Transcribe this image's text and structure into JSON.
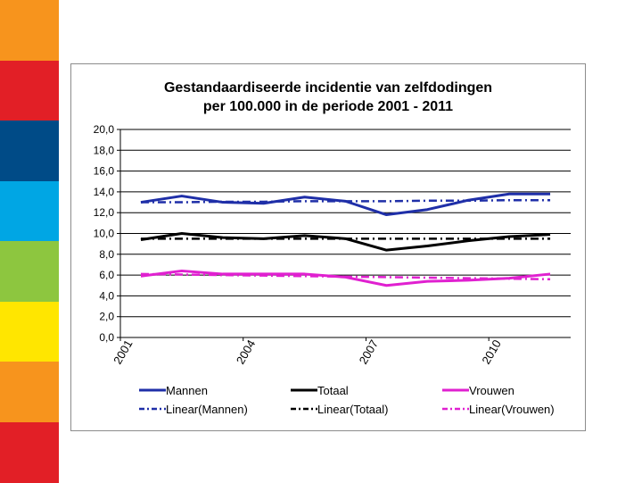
{
  "slide": {
    "stripe_colors": [
      "#f7941d",
      "#e21f26",
      "#004b87",
      "#00a6e4",
      "#8dc63f",
      "#ffe600",
      "#f7941d",
      "#e21f26"
    ]
  },
  "chart_data": {
    "type": "line",
    "title_line1": "Gestandaardiseerde incidentie van zelfdodingen",
    "title_line2": "per 100.000 in de periode 2001 - 2011",
    "xlabel": "",
    "ylabel": "",
    "x": [
      2001,
      2002,
      2003,
      2004,
      2005,
      2006,
      2007,
      2008,
      2009,
      2010,
      2011
    ],
    "x_tick_labels": [
      "2001",
      "2004",
      "2007",
      "2010"
    ],
    "x_tick_values": [
      2001,
      2004,
      2007,
      2010
    ],
    "ylim": [
      0,
      20
    ],
    "y_ticks": [
      0,
      2,
      4,
      6,
      8,
      10,
      12,
      14,
      16,
      18,
      20
    ],
    "y_tick_labels": [
      "0,0",
      "2,0",
      "4,0",
      "6,0",
      "8,0",
      "10,0",
      "12,0",
      "14,0",
      "16,0",
      "18,0",
      "20,0"
    ],
    "grid": true,
    "legend_position": "bottom",
    "series": [
      {
        "name": "Mannen",
        "style": "solid",
        "color": "#1f2fa8",
        "values": [
          13.0,
          13.6,
          13.0,
          12.9,
          13.5,
          13.1,
          11.8,
          12.3,
          13.2,
          13.8,
          13.8
        ]
      },
      {
        "name": "Totaal",
        "style": "solid",
        "color": "#000000",
        "values": [
          9.4,
          10.0,
          9.6,
          9.5,
          9.8,
          9.5,
          8.4,
          8.8,
          9.3,
          9.7,
          9.9
        ]
      },
      {
        "name": "Vrouwen",
        "style": "solid",
        "color": "#e020d0",
        "values": [
          5.9,
          6.4,
          6.1,
          6.1,
          6.1,
          5.8,
          5.0,
          5.4,
          5.5,
          5.7,
          6.1
        ]
      },
      {
        "name": "Linear(Mannen)",
        "style": "dashdot",
        "color": "#1f2fa8",
        "values": [
          13.0,
          13.0,
          13.05,
          13.05,
          13.1,
          13.1,
          13.1,
          13.15,
          13.15,
          13.2,
          13.2
        ]
      },
      {
        "name": "Linear(Totaal)",
        "style": "dashdot",
        "color": "#000000",
        "values": [
          9.5,
          9.5,
          9.5,
          9.5,
          9.5,
          9.5,
          9.5,
          9.5,
          9.5,
          9.5,
          9.5
        ]
      },
      {
        "name": "Linear(Vrouwen)",
        "style": "dashdot",
        "color": "#e020d0",
        "values": [
          6.1,
          6.05,
          6.0,
          5.95,
          5.9,
          5.85,
          5.8,
          5.75,
          5.7,
          5.65,
          5.6
        ]
      }
    ]
  }
}
